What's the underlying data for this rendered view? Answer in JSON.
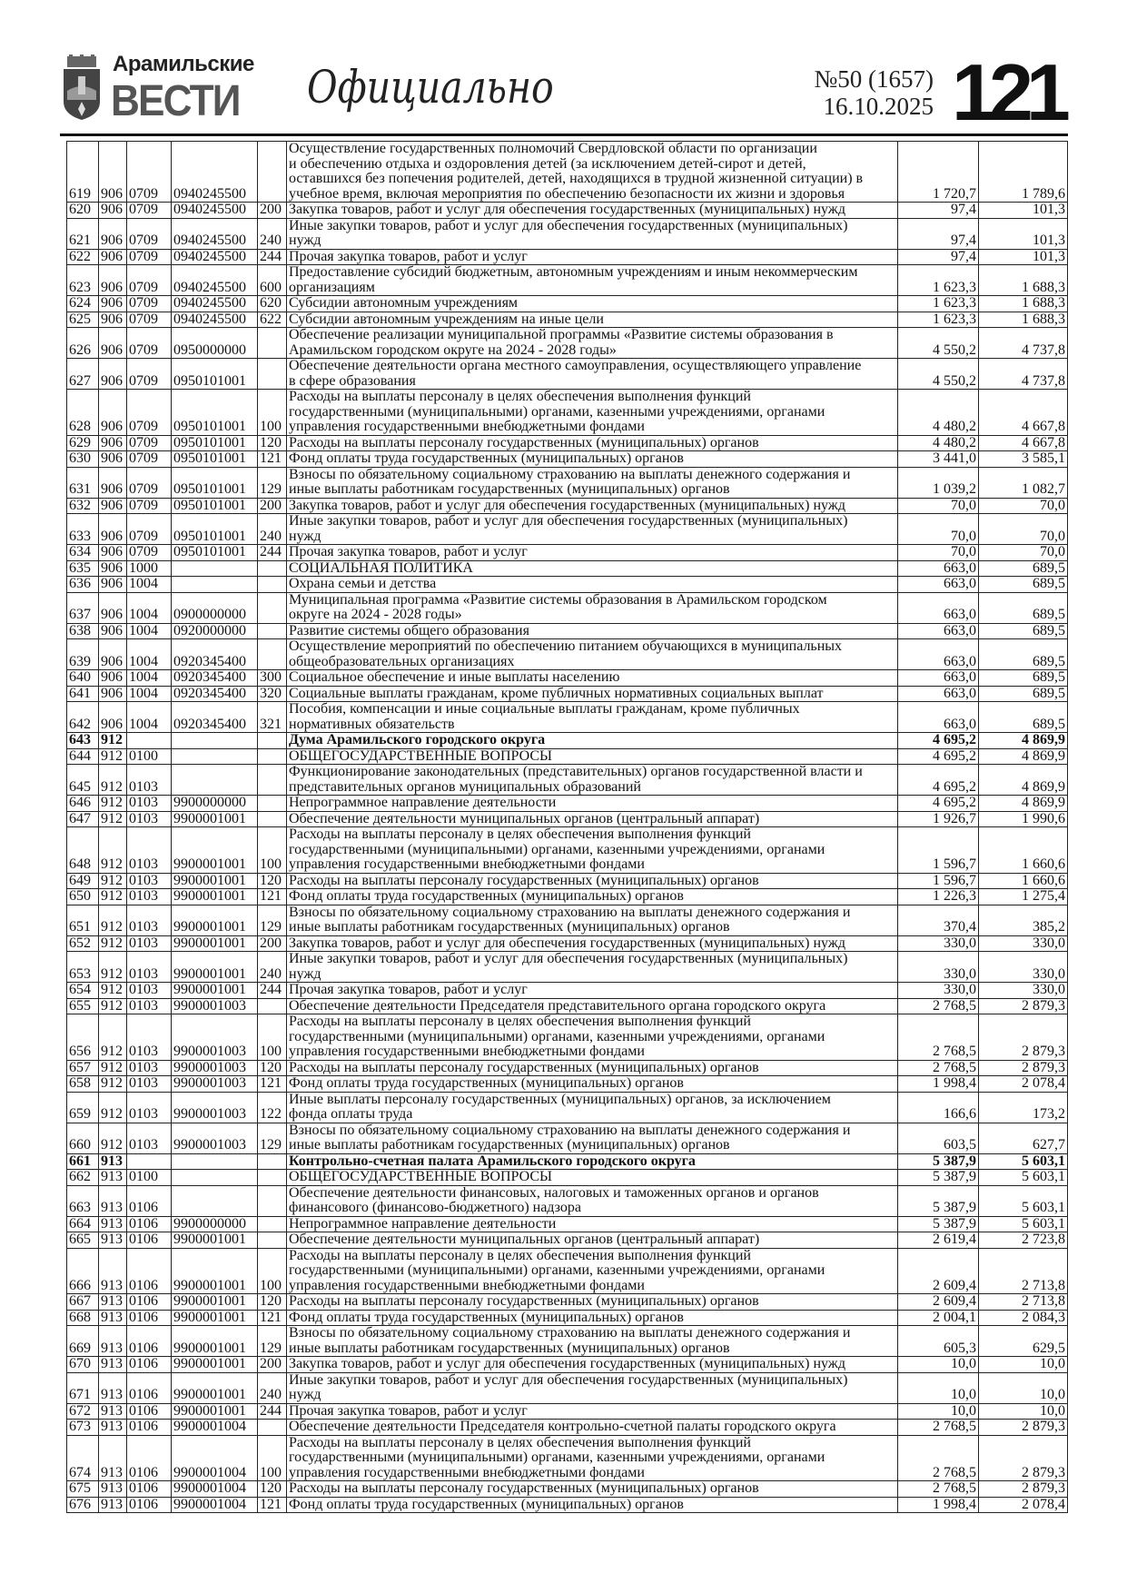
{
  "header": {
    "brand_top": "Арамильские",
    "brand_main": "ВЕСТИ",
    "section": "Официально",
    "issue": "№50 (1657)",
    "date": "16.10.2025",
    "page_number": "121"
  },
  "rows": [
    {
      "n": "619",
      "g": "906",
      "s": "0709",
      "c": "0940245500",
      "v": "",
      "d": "Осуществление государственных полномочий Свердловской области по организации\nи обеспечению отдыха и оздоровления детей (за исключением детей-сирот и детей,\nоставшихся без попечения родителей, детей, находящихся в трудной жизненной ситуации) в\nучебное время, включая мероприятия по обеспечению безопасности их жизни и здоровья",
      "a": "1 720,7",
      "b": "1 789,6"
    },
    {
      "n": "620",
      "g": "906",
      "s": "0709",
      "c": "0940245500",
      "v": "200",
      "d": "Закупка товаров, работ и услуг для обеспечения государственных (муниципальных) нужд",
      "a": "97,4",
      "b": "101,3"
    },
    {
      "n": "621",
      "g": "906",
      "s": "0709",
      "c": "0940245500",
      "v": "240",
      "d": "Иные закупки товаров, работ и услуг для обеспечения государственных (муниципальных)\nнужд",
      "a": "97,4",
      "b": "101,3"
    },
    {
      "n": "622",
      "g": "906",
      "s": "0709",
      "c": "0940245500",
      "v": "244",
      "d": "Прочая закупка товаров, работ и услуг",
      "a": "97,4",
      "b": "101,3"
    },
    {
      "n": "623",
      "g": "906",
      "s": "0709",
      "c": "0940245500",
      "v": "600",
      "d": "Предоставление субсидий бюджетным, автономным учреждениям и иным некоммерческим\nорганизациям",
      "a": "1 623,3",
      "b": "1 688,3"
    },
    {
      "n": "624",
      "g": "906",
      "s": "0709",
      "c": "0940245500",
      "v": "620",
      "d": "Субсидии автономным учреждениям",
      "a": "1 623,3",
      "b": "1 688,3"
    },
    {
      "n": "625",
      "g": "906",
      "s": "0709",
      "c": "0940245500",
      "v": "622",
      "d": "Субсидии автономным учреждениям на иные цели",
      "a": "1 623,3",
      "b": "1 688,3"
    },
    {
      "n": "626",
      "g": "906",
      "s": "0709",
      "c": "0950000000",
      "v": "",
      "d": "Обеспечение реализации муниципальной программы «Развитие системы образования в\nАрамильском городском округе на 2024 - 2028 годы»",
      "a": "4 550,2",
      "b": "4 737,8"
    },
    {
      "n": "627",
      "g": "906",
      "s": "0709",
      "c": "0950101001",
      "v": "",
      "d": "Обеспечение деятельности органа местного самоуправления, осуществляющего управление\nв сфере образования",
      "a": "4 550,2",
      "b": "4 737,8"
    },
    {
      "n": "628",
      "g": "906",
      "s": "0709",
      "c": "0950101001",
      "v": "100",
      "d": "Расходы на выплаты персоналу в целях обеспечения выполнения функций\nгосударственными (муниципальными) органами, казенными учреждениями, органами\nуправления государственными внебюджетными фондами",
      "a": "4 480,2",
      "b": "4 667,8"
    },
    {
      "n": "629",
      "g": "906",
      "s": "0709",
      "c": "0950101001",
      "v": "120",
      "d": "Расходы на выплаты персоналу государственных (муниципальных) органов",
      "a": "4 480,2",
      "b": "4 667,8"
    },
    {
      "n": "630",
      "g": "906",
      "s": "0709",
      "c": "0950101001",
      "v": "121",
      "d": "Фонд оплаты труда государственных (муниципальных) органов",
      "a": "3 441,0",
      "b": "3 585,1"
    },
    {
      "n": "631",
      "g": "906",
      "s": "0709",
      "c": "0950101001",
      "v": "129",
      "d": "Взносы по обязательному социальному страхованию на выплаты денежного содержания и\nиные выплаты работникам государственных (муниципальных) органов",
      "a": "1 039,2",
      "b": "1 082,7"
    },
    {
      "n": "632",
      "g": "906",
      "s": "0709",
      "c": "0950101001",
      "v": "200",
      "d": "Закупка товаров, работ и услуг для обеспечения государственных (муниципальных) нужд",
      "a": "70,0",
      "b": "70,0"
    },
    {
      "n": "633",
      "g": "906",
      "s": "0709",
      "c": "0950101001",
      "v": "240",
      "d": "Иные закупки товаров, работ и услуг для обеспечения государственных (муниципальных)\nнужд",
      "a": "70,0",
      "b": "70,0"
    },
    {
      "n": "634",
      "g": "906",
      "s": "0709",
      "c": "0950101001",
      "v": "244",
      "d": "Прочая закупка товаров, работ и услуг",
      "a": "70,0",
      "b": "70,0"
    },
    {
      "n": "635",
      "g": "906",
      "s": "1000",
      "c": "",
      "v": "",
      "d": "СОЦИАЛЬНАЯ ПОЛИТИКА",
      "a": "663,0",
      "b": "689,5"
    },
    {
      "n": "636",
      "g": "906",
      "s": "1004",
      "c": "",
      "v": "",
      "d": "Охрана семьи и детства",
      "a": "663,0",
      "b": "689,5"
    },
    {
      "n": "637",
      "g": "906",
      "s": "1004",
      "c": "0900000000",
      "v": "",
      "d": "Муниципальная программа «Развитие системы образования в Арамильском городском\nокруге на 2024 - 2028 годы»",
      "a": "663,0",
      "b": "689,5"
    },
    {
      "n": "638",
      "g": "906",
      "s": "1004",
      "c": "0920000000",
      "v": "",
      "d": "Развитие системы общего образования",
      "a": "663,0",
      "b": "689,5"
    },
    {
      "n": "639",
      "g": "906",
      "s": "1004",
      "c": "0920345400",
      "v": "",
      "d": "Осуществление мероприятий по обеспечению питанием обучающихся в муниципальных\nобщеобразовательных организациях",
      "a": "663,0",
      "b": "689,5"
    },
    {
      "n": "640",
      "g": "906",
      "s": "1004",
      "c": "0920345400",
      "v": "300",
      "d": "Социальное обеспечение и иные выплаты населению",
      "a": "663,0",
      "b": "689,5"
    },
    {
      "n": "641",
      "g": "906",
      "s": "1004",
      "c": "0920345400",
      "v": "320",
      "d": "Социальные выплаты гражданам, кроме публичных нормативных социальных выплат",
      "a": "663,0",
      "b": "689,5"
    },
    {
      "n": "642",
      "g": "906",
      "s": "1004",
      "c": "0920345400",
      "v": "321",
      "d": "Пособия, компенсации и иные социальные выплаты гражданам, кроме публичных\nнормативных обязательств",
      "a": "663,0",
      "b": "689,5"
    },
    {
      "n": "643",
      "g": "912",
      "s": "",
      "c": "",
      "v": "",
      "d": "Дума Арамильского городского округа",
      "a": "4 695,2",
      "b": "4 869,9",
      "bold": true
    },
    {
      "n": "644",
      "g": "912",
      "s": "0100",
      "c": "",
      "v": "",
      "d": "ОБЩЕГОСУДАРСТВЕННЫЕ ВОПРОСЫ",
      "a": "4 695,2",
      "b": "4 869,9"
    },
    {
      "n": "645",
      "g": "912",
      "s": "0103",
      "c": "",
      "v": "",
      "d": "Функционирование законодательных (представительных) органов государственной власти и\nпредставительных органов муниципальных образований",
      "a": "4 695,2",
      "b": "4 869,9"
    },
    {
      "n": "646",
      "g": "912",
      "s": "0103",
      "c": "9900000000",
      "v": "",
      "d": "Непрограммное направление деятельности",
      "a": "4 695,2",
      "b": "4 869,9"
    },
    {
      "n": "647",
      "g": "912",
      "s": "0103",
      "c": "9900001001",
      "v": "",
      "d": "Обеспечение деятельности муниципальных органов (центральный аппарат)",
      "a": "1 926,7",
      "b": "1 990,6"
    },
    {
      "n": "648",
      "g": "912",
      "s": "0103",
      "c": "9900001001",
      "v": "100",
      "d": "Расходы на выплаты персоналу в целях обеспечения выполнения функций\nгосударственными (муниципальными) органами, казенными учреждениями, органами\nуправления государственными внебюджетными фондами",
      "a": "1 596,7",
      "b": "1 660,6"
    },
    {
      "n": "649",
      "g": "912",
      "s": "0103",
      "c": "9900001001",
      "v": "120",
      "d": "Расходы на выплаты персоналу государственных (муниципальных) органов",
      "a": "1 596,7",
      "b": "1 660,6"
    },
    {
      "n": "650",
      "g": "912",
      "s": "0103",
      "c": "9900001001",
      "v": "121",
      "d": "Фонд оплаты труда государственных (муниципальных) органов",
      "a": "1 226,3",
      "b": "1 275,4"
    },
    {
      "n": "651",
      "g": "912",
      "s": "0103",
      "c": "9900001001",
      "v": "129",
      "d": "Взносы по обязательному социальному страхованию на выплаты денежного содержания и\nиные выплаты работникам государственных (муниципальных) органов",
      "a": "370,4",
      "b": "385,2"
    },
    {
      "n": "652",
      "g": "912",
      "s": "0103",
      "c": "9900001001",
      "v": "200",
      "d": "Закупка товаров, работ и услуг для обеспечения государственных (муниципальных) нужд",
      "a": "330,0",
      "b": "330,0"
    },
    {
      "n": "653",
      "g": "912",
      "s": "0103",
      "c": "9900001001",
      "v": "240",
      "d": "Иные закупки товаров, работ и услуг для обеспечения государственных (муниципальных)\nнужд",
      "a": "330,0",
      "b": "330,0"
    },
    {
      "n": "654",
      "g": "912",
      "s": "0103",
      "c": "9900001001",
      "v": "244",
      "d": "Прочая закупка товаров, работ и услуг",
      "a": "330,0",
      "b": "330,0"
    },
    {
      "n": "655",
      "g": "912",
      "s": "0103",
      "c": "9900001003",
      "v": "",
      "d": "Обеспечение деятельности Председателя представительного органа городского округа",
      "a": "2 768,5",
      "b": "2 879,3"
    },
    {
      "n": "656",
      "g": "912",
      "s": "0103",
      "c": "9900001003",
      "v": "100",
      "d": "Расходы на выплаты персоналу в целях обеспечения выполнения функций\nгосударственными (муниципальными) органами, казенными учреждениями, органами\nуправления государственными внебюджетными фондами",
      "a": "2 768,5",
      "b": "2 879,3"
    },
    {
      "n": "657",
      "g": "912",
      "s": "0103",
      "c": "9900001003",
      "v": "120",
      "d": "Расходы на выплаты персоналу государственных (муниципальных) органов",
      "a": "2 768,5",
      "b": "2 879,3"
    },
    {
      "n": "658",
      "g": "912",
      "s": "0103",
      "c": "9900001003",
      "v": "121",
      "d": "Фонд оплаты труда государственных (муниципальных) органов",
      "a": "1 998,4",
      "b": "2 078,4"
    },
    {
      "n": "659",
      "g": "912",
      "s": "0103",
      "c": "9900001003",
      "v": "122",
      "d": "Иные выплаты персоналу государственных (муниципальных) органов, за исключением\nфонда оплаты труда",
      "a": "166,6",
      "b": "173,2"
    },
    {
      "n": "660",
      "g": "912",
      "s": "0103",
      "c": "9900001003",
      "v": "129",
      "d": "Взносы по обязательному социальному страхованию на выплаты денежного содержания и\nиные выплаты работникам государственных (муниципальных) органов",
      "a": "603,5",
      "b": "627,7"
    },
    {
      "n": "661",
      "g": "913",
      "s": "",
      "c": "",
      "v": "",
      "d": "Контрольно-счетная палата Арамильского городского округа",
      "a": "5 387,9",
      "b": "5 603,1",
      "bold": true
    },
    {
      "n": "662",
      "g": "913",
      "s": "0100",
      "c": "",
      "v": "",
      "d": "ОБЩЕГОСУДАРСТВЕННЫЕ ВОПРОСЫ",
      "a": "5 387,9",
      "b": "5 603,1"
    },
    {
      "n": "663",
      "g": "913",
      "s": "0106",
      "c": "",
      "v": "",
      "d": "Обеспечение деятельности финансовых, налоговых и таможенных органов и органов\nфинансового (финансово-бюджетного) надзора",
      "a": "5 387,9",
      "b": "5 603,1"
    },
    {
      "n": "664",
      "g": "913",
      "s": "0106",
      "c": "9900000000",
      "v": "",
      "d": "Непрограммное направление деятельности",
      "a": "5 387,9",
      "b": "5 603,1"
    },
    {
      "n": "665",
      "g": "913",
      "s": "0106",
      "c": "9900001001",
      "v": "",
      "d": "Обеспечение деятельности муниципальных органов (центральный аппарат)",
      "a": "2 619,4",
      "b": "2 723,8"
    },
    {
      "n": "666",
      "g": "913",
      "s": "0106",
      "c": "9900001001",
      "v": "100",
      "d": "Расходы на выплаты персоналу в целях обеспечения выполнения функций\nгосударственными (муниципальными) органами, казенными учреждениями, органами\nуправления государственными внебюджетными фондами",
      "a": "2 609,4",
      "b": "2 713,8"
    },
    {
      "n": "667",
      "g": "913",
      "s": "0106",
      "c": "9900001001",
      "v": "120",
      "d": "Расходы на выплаты персоналу государственных (муниципальных) органов",
      "a": "2 609,4",
      "b": "2 713,8"
    },
    {
      "n": "668",
      "g": "913",
      "s": "0106",
      "c": "9900001001",
      "v": "121",
      "d": "Фонд оплаты труда государственных (муниципальных) органов",
      "a": "2 004,1",
      "b": "2 084,3"
    },
    {
      "n": "669",
      "g": "913",
      "s": "0106",
      "c": "9900001001",
      "v": "129",
      "d": "Взносы по обязательному социальному страхованию на выплаты денежного содержания и\nиные выплаты работникам государственных (муниципальных) органов",
      "a": "605,3",
      "b": "629,5"
    },
    {
      "n": "670",
      "g": "913",
      "s": "0106",
      "c": "9900001001",
      "v": "200",
      "d": "Закупка товаров, работ и услуг для обеспечения государственных (муниципальных) нужд",
      "a": "10,0",
      "b": "10,0"
    },
    {
      "n": "671",
      "g": "913",
      "s": "0106",
      "c": "9900001001",
      "v": "240",
      "d": "Иные закупки товаров, работ и услуг для обеспечения государственных (муниципальных)\nнужд",
      "a": "10,0",
      "b": "10,0"
    },
    {
      "n": "672",
      "g": "913",
      "s": "0106",
      "c": "9900001001",
      "v": "244",
      "d": "Прочая закупка товаров, работ и услуг",
      "a": "10,0",
      "b": "10,0"
    },
    {
      "n": "673",
      "g": "913",
      "s": "0106",
      "c": "9900001004",
      "v": "",
      "d": "Обеспечение деятельности Председателя контрольно-счетной палаты городского округа",
      "a": "2 768,5",
      "b": "2 879,3"
    },
    {
      "n": "674",
      "g": "913",
      "s": "0106",
      "c": "9900001004",
      "v": "100",
      "d": "Расходы на выплаты персоналу в целях обеспечения выполнения функций\nгосударственными (муниципальными) органами, казенными учреждениями, органами\nуправления государственными внебюджетными фондами",
      "a": "2 768,5",
      "b": "2 879,3"
    },
    {
      "n": "675",
      "g": "913",
      "s": "0106",
      "c": "9900001004",
      "v": "120",
      "d": "Расходы на выплаты персоналу государственных (муниципальных) органов",
      "a": "2 768,5",
      "b": "2 879,3"
    },
    {
      "n": "676",
      "g": "913",
      "s": "0106",
      "c": "9900001004",
      "v": "121",
      "d": "Фонд оплаты труда государственных (муниципальных) органов",
      "a": "1 998,4",
      "b": "2 078,4"
    }
  ]
}
